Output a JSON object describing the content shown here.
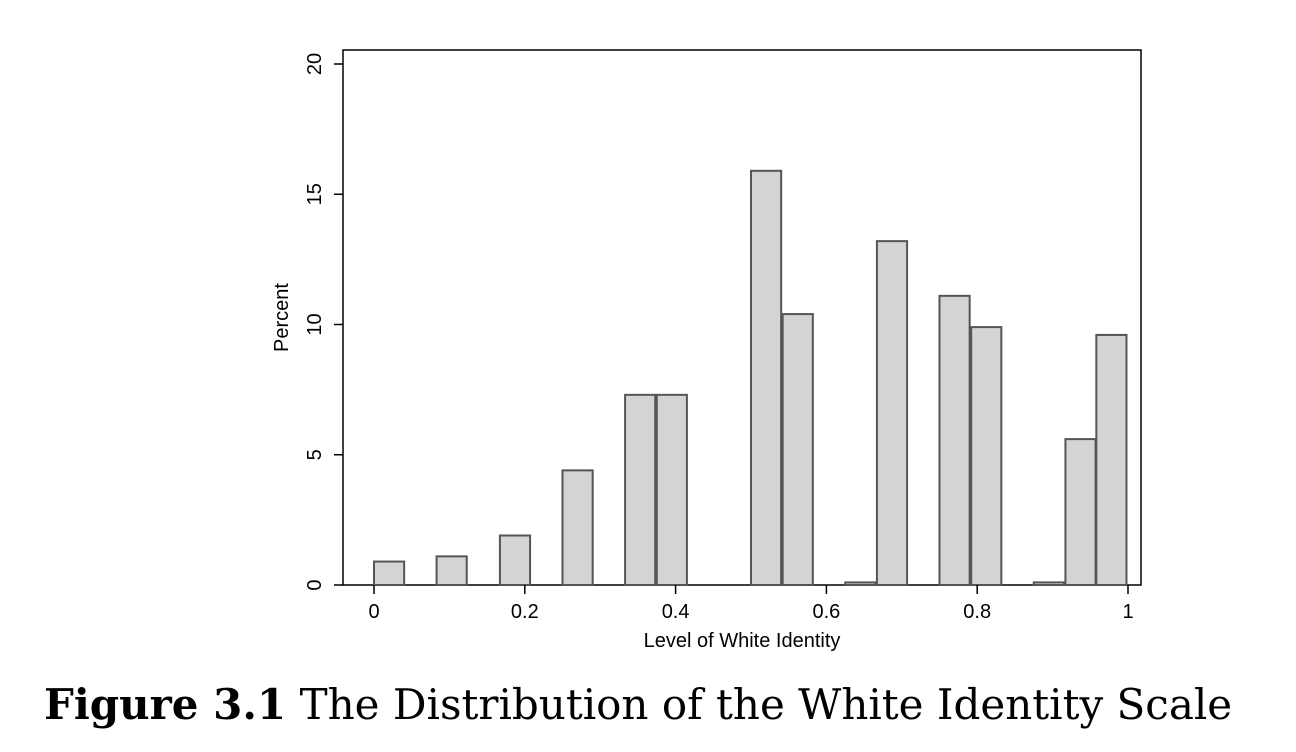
{
  "chart_data": {
    "type": "bar",
    "xlabel": "Level of White Identity",
    "ylabel": "Percent",
    "xlim": [
      0,
      1
    ],
    "ylim": [
      0,
      20
    ],
    "xticks": [
      0,
      0.2,
      0.4,
      0.6,
      0.8,
      1
    ],
    "xtick_labels": [
      "0",
      "0.2",
      "0.4",
      "0.6",
      "0.8",
      "1"
    ],
    "yticks": [
      0,
      5,
      10,
      15,
      20
    ],
    "ytick_labels": [
      "0",
      "5",
      "10",
      "15",
      "20"
    ],
    "grid": false,
    "bar_color": "#d4d4d4",
    "bar_edge_color": "#555555",
    "bin_width": 0.04,
    "bins": [
      {
        "x": 0.0,
        "value": 0.9
      },
      {
        "x": 0.083,
        "value": 1.1
      },
      {
        "x": 0.167,
        "value": 1.9
      },
      {
        "x": 0.25,
        "value": 4.4
      },
      {
        "x": 0.333,
        "value": 7.3
      },
      {
        "x": 0.375,
        "value": 7.3
      },
      {
        "x": 0.5,
        "value": 15.9
      },
      {
        "x": 0.542,
        "value": 10.4
      },
      {
        "x": 0.625,
        "value": 0.1
      },
      {
        "x": 0.667,
        "value": 13.2
      },
      {
        "x": 0.75,
        "value": 11.1
      },
      {
        "x": 0.792,
        "value": 9.9
      },
      {
        "x": 0.875,
        "value": 0.1
      },
      {
        "x": 0.917,
        "value": 5.6
      },
      {
        "x": 0.958,
        "value": 9.6
      }
    ]
  },
  "caption": {
    "label": "Figure 3.1",
    "text": "The Distribution of the White Identity Scale"
  }
}
